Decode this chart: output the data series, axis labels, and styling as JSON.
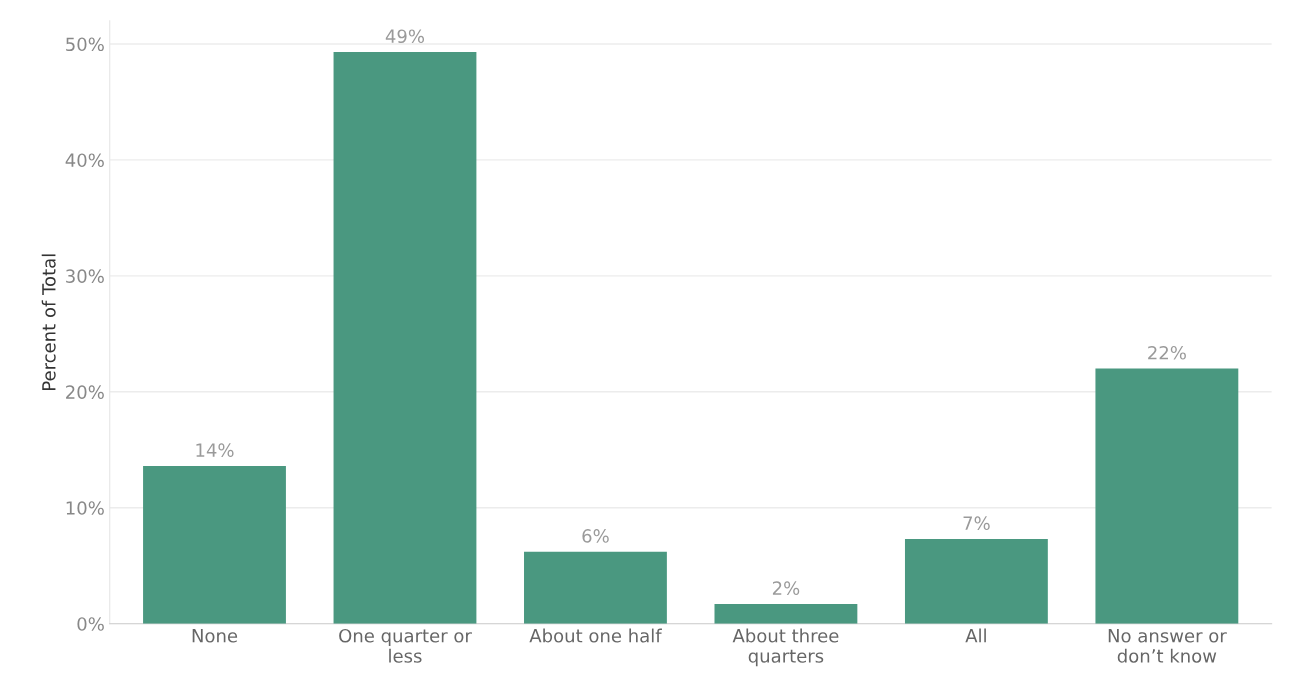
{
  "chart_data": {
    "type": "bar",
    "ylabel": "Percent of Total",
    "categories": [
      "None",
      "One quarter or\nless",
      "About one half",
      "About three\nquarters",
      "All",
      "No answer or\ndon’t know"
    ],
    "values": [
      13.6,
      49.3,
      6.2,
      1.7,
      7.3,
      22.0
    ],
    "value_labels": [
      "14%",
      "49%",
      "6%",
      "2%",
      "7%",
      "22%"
    ],
    "color": "#4a9880",
    "ylim": [
      0,
      52
    ],
    "yticks": [
      {
        "value": 0,
        "label": "0%"
      },
      {
        "value": 10,
        "label": "10%"
      },
      {
        "value": 20,
        "label": "20%"
      },
      {
        "value": 30,
        "label": "30%"
      },
      {
        "value": 40,
        "label": "40%"
      },
      {
        "value": 50,
        "label": "50%"
      }
    ],
    "grid": "y"
  }
}
